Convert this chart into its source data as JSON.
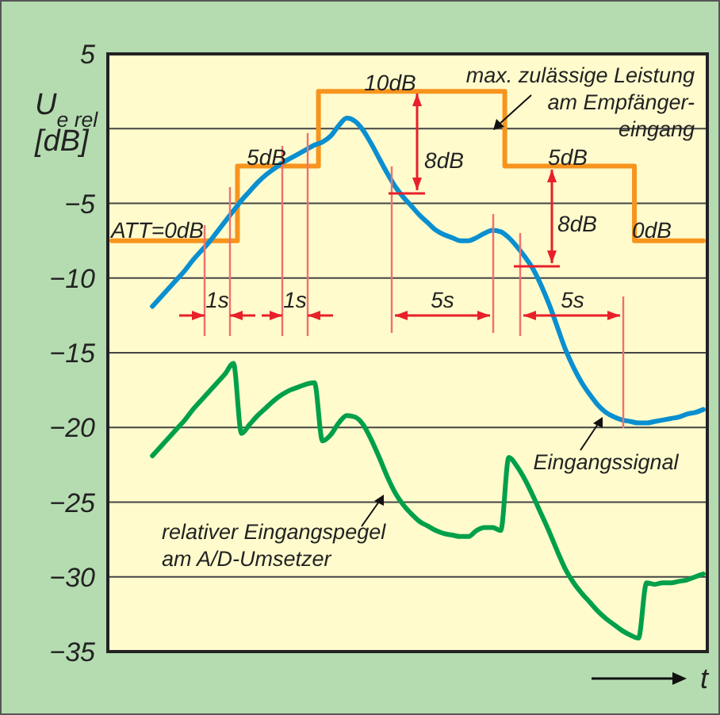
{
  "chart_data": {
    "type": "line",
    "ylabel": "U$_{e rel}$ [dB]",
    "xlabel": "t",
    "categories": [
      null,
      null,
      null,
      null,
      null,
      null,
      null,
      null,
      null,
      null,
      null,
      null,
      null,
      null,
      null,
      null,
      null,
      null,
      null,
      null,
      null,
      null,
      null,
      null,
      null,
      null,
      null,
      null,
      null,
      null,
      null,
      null,
      null,
      null,
      null,
      null,
      null,
      null,
      null,
      null,
      null,
      null,
      null,
      null,
      null,
      null,
      null,
      null,
      null,
      null,
      null,
      null,
      null,
      null,
      null,
      null,
      null,
      null,
      null,
      null,
      null,
      null,
      null,
      null,
      null,
      null,
      null,
      null,
      null,
      null,
      null,
      null,
      null,
      null
    ],
    "ylim": [
      -35,
      5
    ],
    "yticks": [
      5,
      {
        "value": 0,
        "label": null
      },
      {
        "value": -5,
        "label": "−5"
      },
      {
        "value": -10,
        "label": "−10"
      },
      {
        "value": -15,
        "label": "−15"
      },
      {
        "value": -20,
        "label": "−20"
      },
      {
        "value": -25,
        "label": "−25"
      },
      {
        "value": -30,
        "label": "−30"
      },
      {
        "value": -35,
        "label": "−35"
      }
    ],
    "grid": "y",
    "legend": false,
    "tick_labels": "y",
    "series": [
      {
        "type": "step",
        "name": "max. zulässige Leistung\nam Empfänger-\neingang",
        "color": "#f7941d",
        "values": [
          -7.5,
          -7.5,
          -7.5,
          -7.5,
          -7.5,
          -7.5,
          -7.5,
          -7.5,
          -7.5,
          -7.5,
          -7.5,
          -7.5,
          -7.5,
          -7.5,
          -7.5,
          -7.5,
          -2.5,
          -2.5,
          -2.5,
          -2.5,
          -2.5,
          -2.5,
          -2.5,
          -2.5,
          -2.5,
          -2.5,
          2.5,
          2.5,
          2.5,
          2.5,
          2.5,
          2.5,
          2.5,
          2.5,
          2.5,
          2.5,
          2.5,
          2.5,
          2.5,
          2.5,
          2.5,
          2.5,
          2.5,
          2.5,
          2.5,
          2.5,
          2.5,
          2.5,
          2.5,
          -2.5,
          -2.5,
          -2.5,
          -2.5,
          -2.5,
          -2.5,
          -2.5,
          -2.5,
          -2.5,
          -2.5,
          -2.5,
          -2.5,
          -2.5,
          -2.5,
          -2.5,
          -2.5,
          -7.5,
          -7.5,
          -7.5,
          -7.5,
          -7.5,
          -7.5,
          -7.5,
          -7.5,
          -7.5
        ]
      },
      {
        "type": "line",
        "name": "Eingangssignal",
        "color": "#0a8fd0",
        "values": [
          null,
          null,
          null,
          null,
          null,
          -11.9,
          -11.3,
          -10.7,
          -10.1,
          -9.5,
          -8.8,
          -8.2,
          -7.6,
          -6.9,
          -6.2,
          -5.5,
          -4.8,
          -4.2,
          -3.6,
          -3.1,
          -2.7,
          -2.3,
          -2.0,
          -1.7,
          -1.4,
          -1.1,
          -0.9,
          -0.5,
          0.2,
          0.7,
          0.5,
          -0.1,
          -1.0,
          -2.0,
          -3.0,
          -3.9,
          -4.6,
          -5.2,
          -5.8,
          -6.3,
          -6.8,
          -7.1,
          -7.3,
          -7.5,
          -7.5,
          -7.3,
          -7.0,
          -6.8,
          -6.9,
          -7.3,
          -7.9,
          -8.6,
          -9.4,
          -10.5,
          -11.8,
          -13.3,
          -14.8,
          -16.0,
          -17.0,
          -17.8,
          -18.5,
          -19.0,
          -19.3,
          -19.5,
          -19.6,
          -19.7,
          -19.7,
          -19.6,
          -19.5,
          -19.4,
          -19.3,
          -19.1,
          -19.0,
          -18.8
        ]
      },
      {
        "type": "line",
        "name": "relativer Eingangspegel\nam A/D-Umsetzer",
        "color": "#00a04a",
        "values": [
          null,
          null,
          null,
          null,
          null,
          -21.9,
          -21.3,
          -20.7,
          -20.1,
          -19.5,
          -18.8,
          -18.2,
          -17.6,
          -17.0,
          -16.4,
          -15.7,
          -20.4,
          -19.8,
          -19.2,
          -18.7,
          -18.2,
          -17.8,
          -17.5,
          -17.3,
          -17.1,
          -17.0,
          -20.9,
          -20.5,
          -19.7,
          -19.2,
          -19.3,
          -19.8,
          -20.8,
          -22.0,
          -23.3,
          -24.4,
          -25.2,
          -25.8,
          -26.3,
          -26.6,
          -26.9,
          -27.1,
          -27.2,
          -27.3,
          -27.3,
          -26.9,
          -26.7,
          -26.7,
          -26.9,
          -22.0,
          -22.6,
          -23.5,
          -24.6,
          -25.8,
          -27.0,
          -28.3,
          -29.5,
          -30.4,
          -31.1,
          -31.7,
          -32.3,
          -32.8,
          -33.2,
          -33.6,
          -33.9,
          -34.1,
          -30.4,
          -30.5,
          -30.4,
          -30.4,
          -30.3,
          -30.2,
          -30.0,
          -29.8
        ]
      }
    ],
    "annotations": [
      "ATT=0dB",
      "5dB",
      "10dB",
      "5dB",
      "0dB",
      "8dB",
      "8dB",
      "1s",
      "1s",
      "5s",
      "5s"
    ]
  }
}
